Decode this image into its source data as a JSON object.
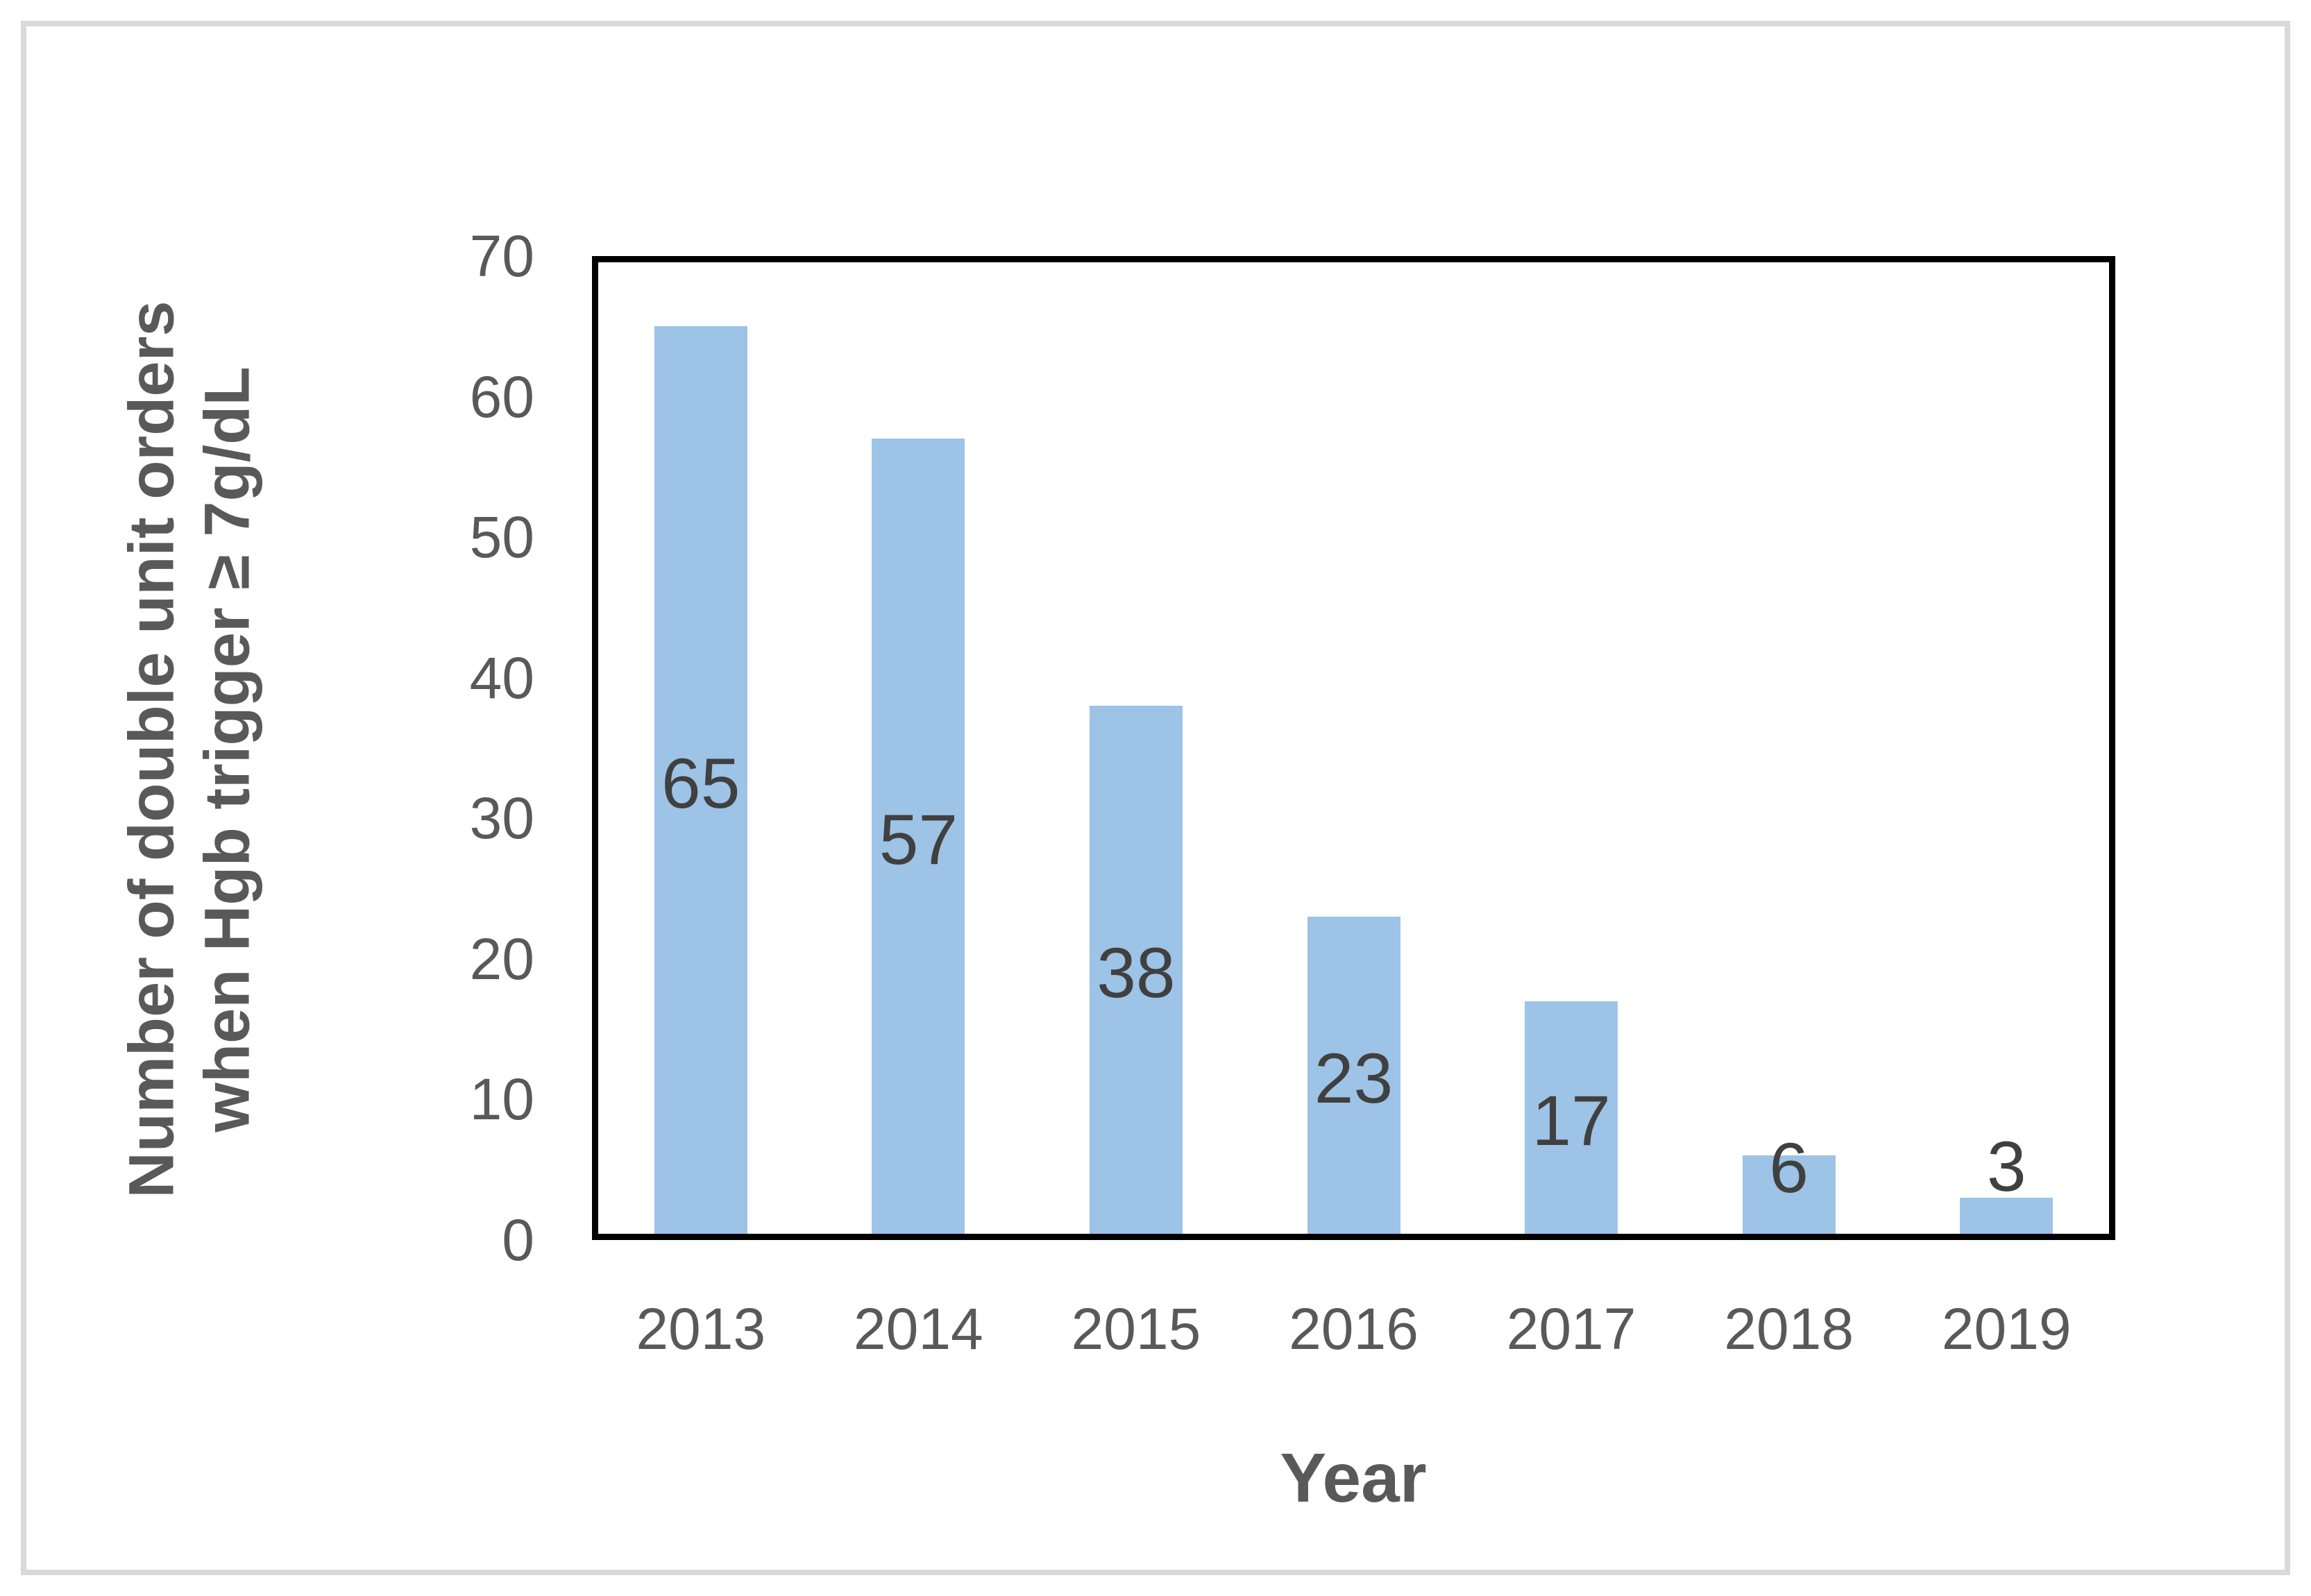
{
  "chart_data": {
    "type": "bar",
    "title": "",
    "categories": [
      "2013",
      "2014",
      "2015",
      "2016",
      "2017",
      "2018",
      "2019"
    ],
    "values": [
      65,
      57,
      38,
      23,
      17,
      6,
      3
    ],
    "xlabel": "Year",
    "ylabel_lines": [
      "Number of double unit orders",
      "when Hgb trigger ≥ 7g/dL"
    ],
    "yticks": [
      0,
      10,
      20,
      30,
      40,
      50,
      60,
      70
    ],
    "ylim": [
      0,
      70
    ],
    "grid": false,
    "legend": "none",
    "bar_color": "#9dc3e6",
    "value_label_color": "#404040",
    "axis_text_color": "#595959",
    "plot_frame_color": "#000000",
    "outer_border_color": "#d9d9d9",
    "label_positions": [
      "center",
      "center",
      "center",
      "center",
      "center",
      "edge",
      "above"
    ]
  }
}
